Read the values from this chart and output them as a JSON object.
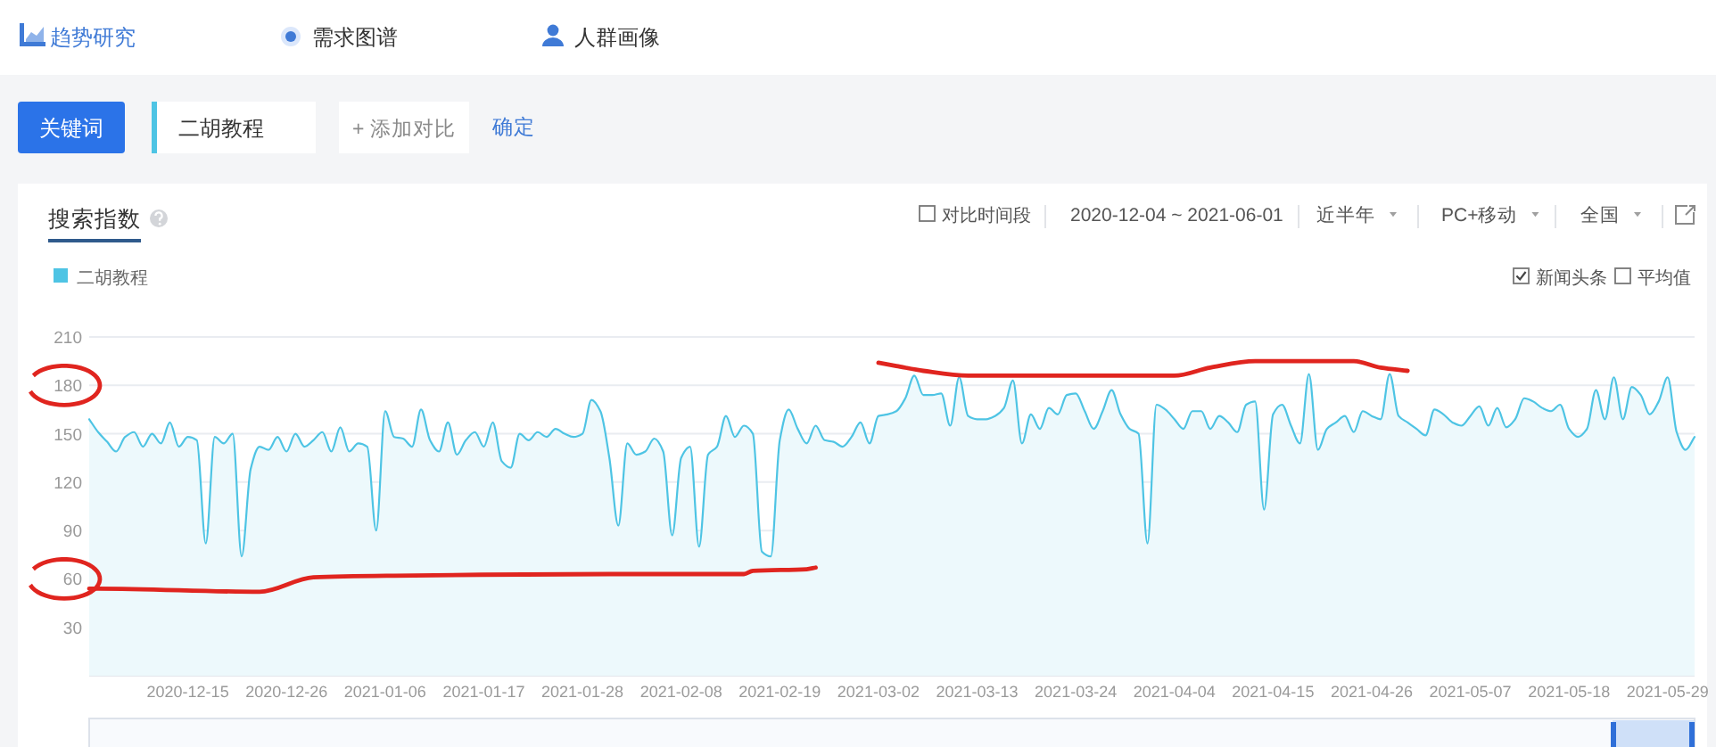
{
  "chart_data": {
    "type": "area",
    "title": "搜索指数",
    "x": [
      "2020-12-04",
      "2020-12-05",
      "2020-12-06",
      "2020-12-07",
      "2020-12-08",
      "2020-12-09",
      "2020-12-10",
      "2020-12-11",
      "2020-12-12",
      "2020-12-13",
      "2020-12-14",
      "2020-12-15",
      "2020-12-16",
      "2020-12-17",
      "2020-12-18",
      "2020-12-19",
      "2020-12-20",
      "2020-12-21",
      "2020-12-22",
      "2020-12-23",
      "2020-12-24",
      "2020-12-25",
      "2020-12-26",
      "2020-12-27",
      "2020-12-28",
      "2020-12-29",
      "2020-12-30",
      "2020-12-31",
      "2021-01-01",
      "2021-01-02",
      "2021-01-03",
      "2021-01-04",
      "2021-01-05",
      "2021-01-06",
      "2021-01-07",
      "2021-01-08",
      "2021-01-09",
      "2021-01-10",
      "2021-01-11",
      "2021-01-12",
      "2021-01-13",
      "2021-01-14",
      "2021-01-15",
      "2021-01-16",
      "2021-01-17",
      "2021-01-18",
      "2021-01-19",
      "2021-01-20",
      "2021-01-21",
      "2021-01-22",
      "2021-01-23",
      "2021-01-24",
      "2021-01-25",
      "2021-01-26",
      "2021-01-27",
      "2021-01-28",
      "2021-01-29",
      "2021-01-30",
      "2021-01-31",
      "2021-02-01",
      "2021-02-02",
      "2021-02-03",
      "2021-02-04",
      "2021-02-05",
      "2021-02-06",
      "2021-02-07",
      "2021-02-08",
      "2021-02-09",
      "2021-02-10",
      "2021-02-11",
      "2021-02-12",
      "2021-02-13",
      "2021-02-14",
      "2021-02-15",
      "2021-02-16",
      "2021-02-17",
      "2021-02-18",
      "2021-02-19",
      "2021-02-20",
      "2021-02-21",
      "2021-02-22",
      "2021-02-23",
      "2021-02-24",
      "2021-02-25",
      "2021-02-26",
      "2021-02-27",
      "2021-02-28",
      "2021-03-01",
      "2021-03-02",
      "2021-03-03",
      "2021-03-04",
      "2021-03-05",
      "2021-03-06",
      "2021-03-07",
      "2021-03-08",
      "2021-03-09",
      "2021-03-10",
      "2021-03-11",
      "2021-03-12",
      "2021-03-13",
      "2021-03-14",
      "2021-03-15",
      "2021-03-16",
      "2021-03-17",
      "2021-03-18",
      "2021-03-19",
      "2021-03-20",
      "2021-03-21",
      "2021-03-22",
      "2021-03-23",
      "2021-03-24",
      "2021-03-25",
      "2021-03-26",
      "2021-03-27",
      "2021-03-28",
      "2021-03-29",
      "2021-03-30",
      "2021-03-31",
      "2021-04-01",
      "2021-04-02",
      "2021-04-03",
      "2021-04-04",
      "2021-04-05",
      "2021-04-06",
      "2021-04-07",
      "2021-04-08",
      "2021-04-09",
      "2021-04-10",
      "2021-04-11",
      "2021-04-12",
      "2021-04-13",
      "2021-04-14",
      "2021-04-15",
      "2021-04-16",
      "2021-04-17",
      "2021-04-18",
      "2021-04-19",
      "2021-04-20",
      "2021-04-21",
      "2021-04-22",
      "2021-04-23",
      "2021-04-24",
      "2021-04-25",
      "2021-04-26",
      "2021-04-27",
      "2021-04-28",
      "2021-04-29",
      "2021-04-30",
      "2021-05-01",
      "2021-05-02",
      "2021-05-03",
      "2021-05-04",
      "2021-05-05",
      "2021-05-06",
      "2021-05-07",
      "2021-05-08",
      "2021-05-09",
      "2021-05-10",
      "2021-05-11",
      "2021-05-12",
      "2021-05-13",
      "2021-05-14",
      "2021-05-15",
      "2021-05-16",
      "2021-05-17",
      "2021-05-18",
      "2021-05-19",
      "2021-05-20",
      "2021-05-21",
      "2021-05-22",
      "2021-05-23",
      "2021-05-24",
      "2021-05-25",
      "2021-05-26",
      "2021-05-27",
      "2021-05-28",
      "2021-05-29",
      "2021-05-30",
      "2021-05-31",
      "2021-06-01"
    ],
    "series": [
      {
        "name": "二胡教程",
        "color": "#4ec4e4",
        "values": [
          159,
          151,
          145,
          139,
          148,
          151,
          142,
          150,
          144,
          157,
          142,
          148,
          146,
          82,
          148,
          144,
          150,
          74,
          128,
          142,
          140,
          148,
          139,
          150,
          142,
          146,
          151,
          139,
          154,
          139,
          144,
          142,
          90,
          164,
          148,
          147,
          142,
          165,
          146,
          139,
          157,
          137,
          146,
          151,
          142,
          157,
          133,
          129,
          150,
          146,
          151,
          148,
          153,
          150,
          148,
          150,
          171,
          164,
          135,
          93,
          144,
          137,
          139,
          147,
          139,
          87,
          135,
          142,
          80,
          137,
          142,
          161,
          148,
          155,
          150,
          77,
          74,
          146,
          165,
          153,
          144,
          155,
          146,
          145,
          142,
          148,
          157,
          144,
          161,
          162,
          164,
          172,
          186,
          174,
          174,
          175,
          155,
          185,
          161,
          159,
          159,
          161,
          166,
          183,
          144,
          162,
          153,
          166,
          162,
          174,
          175,
          164,
          153,
          164,
          177,
          162,
          153,
          150,
          82,
          168,
          165,
          159,
          153,
          164,
          164,
          153,
          161,
          157,
          151,
          168,
          170,
          103,
          162,
          168,
          155,
          144,
          187,
          140,
          153,
          157,
          161,
          151,
          164,
          161,
          159,
          187,
          161,
          157,
          153,
          149,
          165,
          162,
          157,
          155,
          161,
          167,
          155,
          166,
          154,
          159,
          172,
          170,
          166,
          164,
          168,
          153,
          148,
          153,
          177,
          159,
          185,
          159,
          179,
          174,
          162,
          170,
          185,
          151,
          140,
          148
        ]
      },
      {
        "type": "line",
        "color": "#e0251f",
        "x": [
          "2020-12-04",
          "2020-12-05",
          "2020-12-23",
          "2020-12-29",
          "2021-01-07",
          "2021-01-31",
          "2021-02-15",
          "2021-02-16",
          "2021-02-22",
          "2021-02-23"
        ],
        "values": [
          54,
          54,
          52,
          61,
          62,
          63,
          63,
          65,
          66,
          67
        ]
      },
      {
        "type": "line",
        "color": "#e0251f",
        "x": [
          "2021-03-02",
          "2021-03-04",
          "2021-03-07",
          "2021-03-12",
          "2021-04-04",
          "2021-04-08",
          "2021-04-13",
          "2021-04-24",
          "2021-04-27",
          "2021-04-30"
        ],
        "values": [
          194,
          192,
          189,
          186,
          186,
          191,
          195,
          195,
          191,
          189
        ]
      }
    ],
    "xlim": [
      "2020-12-04",
      "2021-06-01"
    ],
    "xticks": [
      "2020-12-15",
      "2020-12-26",
      "2021-01-06",
      "2021-01-17",
      "2021-01-28",
      "2021-02-08",
      "2021-02-19",
      "2021-03-02",
      "2021-03-13",
      "2021-03-24",
      "2021-04-04",
      "2021-04-15",
      "2021-04-26",
      "2021-05-07",
      "2021-05-18",
      "2021-05-29"
    ],
    "ylim": [
      0,
      210
    ],
    "yticks": [
      30,
      60,
      90,
      120,
      150,
      180,
      210
    ],
    "grid": "y",
    "legend": "top left",
    "annotations": [
      "趋势研究",
      "需求图谱",
      "人群画像",
      "关键词",
      "二胡教程",
      "+ 添加对比",
      "确定",
      "对比时间段",
      "2020-12-04 ~ 2021-06-01",
      "近半年",
      "PC+移动",
      "全国",
      "新闻头条",
      "平均值"
    ]
  }
}
